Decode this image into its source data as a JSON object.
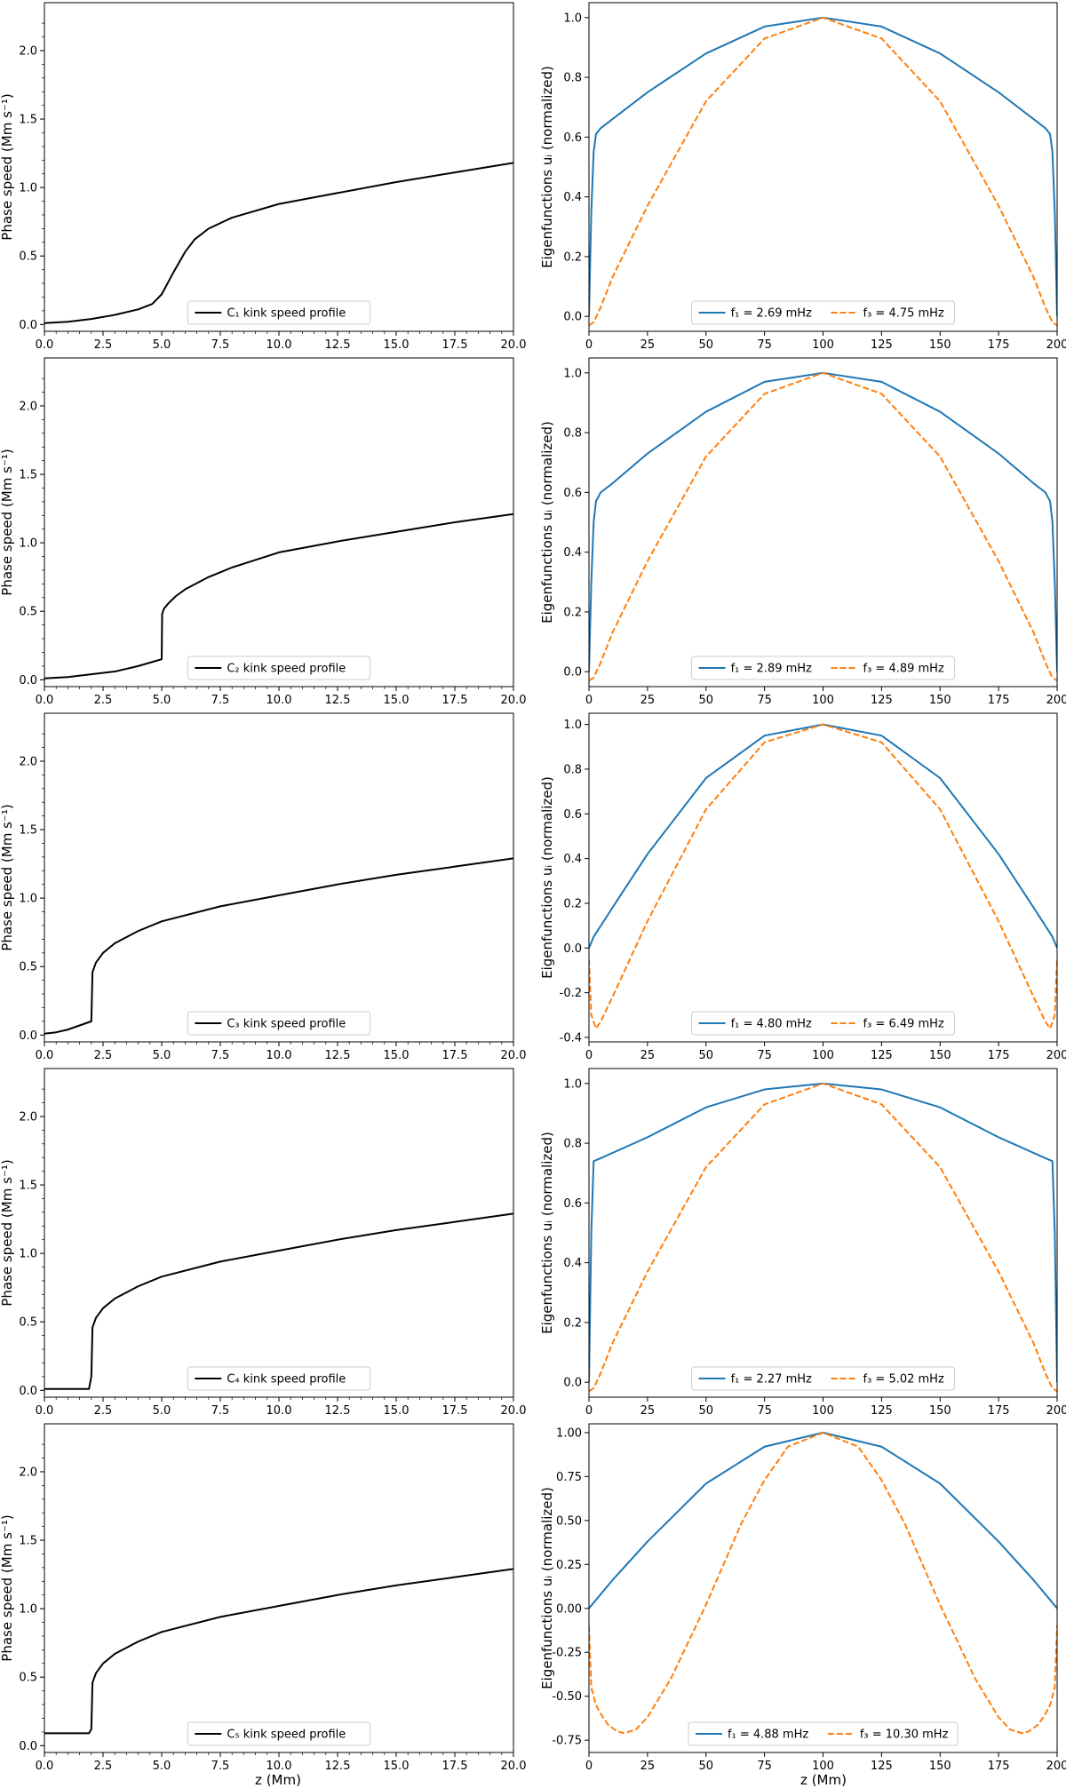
{
  "figure": {
    "xlabel_left": "z (Mm)",
    "xlabel_right": "z (Mm)"
  },
  "colors": {
    "kink": "#000000",
    "f1": "#1f77b4",
    "f3": "#ff7f0e",
    "axes": "#000000"
  },
  "chart_data": [
    {
      "type": "line",
      "panel": "C1 speed",
      "ylabel": "Phase speed (Mm s⁻¹)",
      "xlim": [
        0,
        20
      ],
      "ylim": [
        -0.05,
        2.35
      ],
      "xticks": [
        "0.0",
        "2.5",
        "5.0",
        "7.5",
        "10.0",
        "12.5",
        "15.0",
        "17.5",
        "20.0"
      ],
      "yticks": [
        "0.0",
        "0.5",
        "1.0",
        "1.5",
        "2.0"
      ],
      "legend": "top-center-bottom",
      "series": [
        {
          "name": "C₁ kink speed profile",
          "style": "solid",
          "color": "#000000",
          "x": [
            0,
            1,
            2,
            3,
            4,
            4.6,
            5,
            5.5,
            6,
            6.4,
            7,
            8,
            10,
            12.5,
            15,
            17.5,
            20
          ],
          "y": [
            0.01,
            0.02,
            0.04,
            0.07,
            0.11,
            0.15,
            0.22,
            0.38,
            0.53,
            0.62,
            0.7,
            0.78,
            0.88,
            0.96,
            1.04,
            1.11,
            1.18
          ]
        }
      ]
    },
    {
      "type": "line",
      "panel": "C1 eigenfunctions",
      "ylabel": "Eigenfunctions uᵢ (normalized)",
      "xlim": [
        0,
        200
      ],
      "ylim": [
        -0.05,
        1.05
      ],
      "xticks": [
        "0",
        "25",
        "50",
        "75",
        "100",
        "125",
        "150",
        "175",
        "200"
      ],
      "yticks": [
        "0.0",
        "0.2",
        "0.4",
        "0.6",
        "0.8",
        "1.0"
      ],
      "series": [
        {
          "name": "f₁ = 2.69 mHz",
          "style": "solid",
          "color": "#1f77b4",
          "x": [
            0,
            1,
            2,
            3,
            5,
            10,
            25,
            50,
            75,
            100,
            125,
            150,
            175,
            190,
            195,
            197,
            198,
            199,
            200
          ],
          "y": [
            0,
            0.35,
            0.55,
            0.61,
            0.63,
            0.66,
            0.75,
            0.88,
            0.97,
            1.0,
            0.97,
            0.88,
            0.75,
            0.66,
            0.63,
            0.61,
            0.55,
            0.35,
            0
          ]
        },
        {
          "name": "f₃ = 4.75 mHz",
          "style": "dashed",
          "color": "#ff7f0e",
          "x": [
            0,
            2,
            5,
            10,
            25,
            50,
            75,
            100,
            125,
            150,
            175,
            190,
            195,
            198,
            200
          ],
          "y": [
            -0.03,
            -0.02,
            0.03,
            0.13,
            0.37,
            0.72,
            0.93,
            1.0,
            0.93,
            0.72,
            0.37,
            0.13,
            0.03,
            -0.02,
            -0.03
          ]
        }
      ]
    },
    {
      "type": "line",
      "panel": "C2 speed",
      "ylabel": "Phase speed (Mm s⁻¹)",
      "xlim": [
        0,
        20
      ],
      "ylim": [
        -0.05,
        2.35
      ],
      "xticks": [
        "0.0",
        "2.5",
        "5.0",
        "7.5",
        "10.0",
        "12.5",
        "15.0",
        "17.5",
        "20.0"
      ],
      "yticks": [
        "0.0",
        "0.5",
        "1.0",
        "1.5",
        "2.0"
      ],
      "series": [
        {
          "name": "C₂ kink speed profile",
          "style": "solid",
          "color": "#000000",
          "x": [
            0,
            1,
            2,
            3,
            4,
            4.6,
            5,
            5.02,
            5.1,
            5.3,
            5.6,
            6,
            7,
            8,
            10,
            12.5,
            15,
            17.5,
            20
          ],
          "y": [
            0.01,
            0.02,
            0.04,
            0.06,
            0.1,
            0.13,
            0.15,
            0.48,
            0.52,
            0.56,
            0.61,
            0.66,
            0.75,
            0.82,
            0.93,
            1.01,
            1.08,
            1.15,
            1.21
          ]
        }
      ]
    },
    {
      "type": "line",
      "panel": "C2 eigenfunctions",
      "ylabel": "Eigenfunctions uᵢ (normalized)",
      "xlim": [
        0,
        200
      ],
      "ylim": [
        -0.05,
        1.05
      ],
      "xticks": [
        "0",
        "25",
        "50",
        "75",
        "100",
        "125",
        "150",
        "175",
        "200"
      ],
      "yticks": [
        "0.0",
        "0.2",
        "0.4",
        "0.6",
        "0.8",
        "1.0"
      ],
      "series": [
        {
          "name": "f₁ = 2.89 mHz",
          "style": "solid",
          "color": "#1f77b4",
          "x": [
            0,
            1,
            2,
            3,
            5,
            10,
            25,
            50,
            75,
            100,
            125,
            150,
            175,
            190,
            195,
            197,
            198,
            199,
            200
          ],
          "y": [
            0,
            0.3,
            0.5,
            0.57,
            0.6,
            0.63,
            0.73,
            0.87,
            0.97,
            1.0,
            0.97,
            0.87,
            0.73,
            0.63,
            0.6,
            0.57,
            0.5,
            0.3,
            0
          ]
        },
        {
          "name": "f₃ = 4.89 mHz",
          "style": "dashed",
          "color": "#ff7f0e",
          "x": [
            0,
            2,
            5,
            10,
            25,
            50,
            75,
            100,
            125,
            150,
            175,
            190,
            195,
            198,
            200
          ],
          "y": [
            -0.03,
            -0.02,
            0.03,
            0.13,
            0.37,
            0.72,
            0.93,
            1.0,
            0.93,
            0.72,
            0.37,
            0.13,
            0.03,
            -0.02,
            -0.03
          ]
        }
      ]
    },
    {
      "type": "line",
      "panel": "C3 speed",
      "ylabel": "Phase speed (Mm s⁻¹)",
      "xlim": [
        0,
        20
      ],
      "ylim": [
        -0.05,
        2.35
      ],
      "xticks": [
        "0.0",
        "2.5",
        "5.0",
        "7.5",
        "10.0",
        "12.5",
        "15.0",
        "17.5",
        "20.0"
      ],
      "yticks": [
        "0.0",
        "0.5",
        "1.0",
        "1.5",
        "2.0"
      ],
      "series": [
        {
          "name": "C₃ kink speed profile",
          "style": "solid",
          "color": "#000000",
          "x": [
            0,
            0.5,
            1,
            1.5,
            2,
            2.05,
            2.2,
            2.5,
            3,
            4,
            5,
            7.5,
            10,
            12.5,
            15,
            17.5,
            20
          ],
          "y": [
            0.01,
            0.02,
            0.04,
            0.07,
            0.1,
            0.46,
            0.53,
            0.6,
            0.67,
            0.76,
            0.83,
            0.94,
            1.02,
            1.1,
            1.17,
            1.23,
            1.29
          ]
        }
      ]
    },
    {
      "type": "line",
      "panel": "C3 eigenfunctions",
      "ylabel": "Eigenfunctions uᵢ (normalized)",
      "xlim": [
        0,
        200
      ],
      "ylim": [
        -0.42,
        1.05
      ],
      "xticks": [
        "0",
        "25",
        "50",
        "75",
        "100",
        "125",
        "150",
        "175",
        "200"
      ],
      "yticks": [
        "-0.4",
        "-0.2",
        "0.0",
        "0.2",
        "0.4",
        "0.6",
        "0.8",
        "1.0"
      ],
      "series": [
        {
          "name": "f₁ = 4.80 mHz",
          "style": "solid",
          "color": "#1f77b4",
          "x": [
            0,
            2,
            10,
            25,
            50,
            75,
            100,
            125,
            150,
            175,
            190,
            198,
            200
          ],
          "y": [
            0,
            0.05,
            0.18,
            0.42,
            0.76,
            0.95,
            1.0,
            0.95,
            0.76,
            0.42,
            0.18,
            0.05,
            0
          ]
        },
        {
          "name": "f₃ = 6.49 mHz",
          "style": "dashed",
          "color": "#ff7f0e",
          "x": [
            0,
            1,
            3,
            5,
            10,
            25,
            50,
            75,
            100,
            125,
            150,
            175,
            190,
            195,
            197,
            199,
            200
          ],
          "y": [
            -0.05,
            -0.3,
            -0.36,
            -0.33,
            -0.22,
            0.12,
            0.62,
            0.92,
            1.0,
            0.92,
            0.62,
            0.12,
            -0.22,
            -0.33,
            -0.36,
            -0.3,
            -0.05
          ]
        }
      ]
    },
    {
      "type": "line",
      "panel": "C4 speed",
      "ylabel": "Phase speed (Mm s⁻¹)",
      "xlim": [
        0,
        20
      ],
      "ylim": [
        -0.05,
        2.35
      ],
      "xticks": [
        "0.0",
        "2.5",
        "5.0",
        "7.5",
        "10.0",
        "12.5",
        "15.0",
        "17.5",
        "20.0"
      ],
      "yticks": [
        "0.0",
        "0.5",
        "1.0",
        "1.5",
        "2.0"
      ],
      "series": [
        {
          "name": "C₄ kink speed profile",
          "style": "solid",
          "color": "#000000",
          "x": [
            0,
            1,
            1.9,
            2,
            2.05,
            2.2,
            2.5,
            3,
            4,
            5,
            7.5,
            10,
            12.5,
            15,
            17.5,
            20
          ],
          "y": [
            0.01,
            0.01,
            0.01,
            0.1,
            0.46,
            0.53,
            0.6,
            0.67,
            0.76,
            0.83,
            0.94,
            1.02,
            1.1,
            1.17,
            1.23,
            1.29
          ]
        }
      ]
    },
    {
      "type": "line",
      "panel": "C4 eigenfunctions",
      "ylabel": "Eigenfunctions uᵢ (normalized)",
      "xlim": [
        0,
        200
      ],
      "ylim": [
        -0.05,
        1.05
      ],
      "xticks": [
        "0",
        "25",
        "50",
        "75",
        "100",
        "125",
        "150",
        "175",
        "200"
      ],
      "yticks": [
        "0.0",
        "0.2",
        "0.4",
        "0.6",
        "0.8",
        "1.0"
      ],
      "series": [
        {
          "name": "f₁ = 2.27 mHz",
          "style": "solid",
          "color": "#1f77b4",
          "x": [
            0,
            1,
            2,
            5,
            25,
            50,
            75,
            100,
            125,
            150,
            175,
            195,
            198,
            199,
            200
          ],
          "y": [
            0,
            0.5,
            0.74,
            0.75,
            0.82,
            0.92,
            0.98,
            1.0,
            0.98,
            0.92,
            0.82,
            0.75,
            0.74,
            0.5,
            0
          ]
        },
        {
          "name": "f₃ = 5.02 mHz",
          "style": "dashed",
          "color": "#ff7f0e",
          "x": [
            0,
            2,
            5,
            10,
            25,
            50,
            75,
            100,
            125,
            150,
            175,
            190,
            195,
            198,
            200
          ],
          "y": [
            -0.03,
            -0.02,
            0.03,
            0.13,
            0.37,
            0.72,
            0.93,
            1.0,
            0.93,
            0.72,
            0.37,
            0.13,
            0.03,
            -0.02,
            -0.03
          ]
        }
      ]
    },
    {
      "type": "line",
      "panel": "C5 speed",
      "ylabel": "Phase speed (Mm s⁻¹)",
      "xlim": [
        0,
        20
      ],
      "ylim": [
        -0.05,
        2.35
      ],
      "xticks": [
        "0.0",
        "2.5",
        "5.0",
        "7.5",
        "10.0",
        "12.5",
        "15.0",
        "17.5",
        "20.0"
      ],
      "yticks": [
        "0.0",
        "0.5",
        "1.0",
        "1.5",
        "2.0"
      ],
      "series": [
        {
          "name": "C₅ kink speed profile",
          "style": "solid",
          "color": "#000000",
          "x": [
            0,
            1,
            1.9,
            2,
            2.05,
            2.2,
            2.5,
            3,
            4,
            5,
            7.5,
            10,
            12.5,
            15,
            17.5,
            20
          ],
          "y": [
            0.09,
            0.09,
            0.09,
            0.12,
            0.46,
            0.53,
            0.6,
            0.67,
            0.76,
            0.83,
            0.94,
            1.02,
            1.1,
            1.17,
            1.23,
            1.29
          ]
        }
      ]
    },
    {
      "type": "line",
      "panel": "C5 eigenfunctions",
      "ylabel": "Eigenfunctions uᵢ (normalized)",
      "xlim": [
        0,
        200
      ],
      "ylim": [
        -0.82,
        1.05
      ],
      "xticks": [
        "0",
        "25",
        "50",
        "75",
        "100",
        "125",
        "150",
        "175",
        "200"
      ],
      "yticks": [
        "-0.75",
        "-0.50",
        "-0.25",
        "0.00",
        "0.25",
        "0.50",
        "0.75",
        "1.00"
      ],
      "series": [
        {
          "name": "f₁ = 4.88 mHz",
          "style": "solid",
          "color": "#1f77b4",
          "x": [
            0,
            10,
            25,
            50,
            75,
            100,
            125,
            150,
            175,
            190,
            200
          ],
          "y": [
            0,
            0.16,
            0.38,
            0.71,
            0.92,
            1.0,
            0.92,
            0.71,
            0.38,
            0.16,
            0
          ]
        },
        {
          "name": "f₃ = 10.30 mHz",
          "style": "dashed",
          "color": "#ff7f0e",
          "x": [
            0,
            1,
            3,
            5,
            8,
            12,
            15,
            20,
            25,
            35,
            50,
            65,
            75,
            85,
            100,
            115,
            125,
            135,
            150,
            165,
            175,
            180,
            185,
            188,
            192,
            195,
            197,
            199,
            200
          ],
          "y": [
            -0.1,
            -0.45,
            -0.55,
            -0.6,
            -0.66,
            -0.7,
            -0.71,
            -0.69,
            -0.62,
            -0.4,
            0.02,
            0.48,
            0.73,
            0.92,
            1.0,
            0.92,
            0.73,
            0.48,
            0.02,
            -0.4,
            -0.62,
            -0.69,
            -0.71,
            -0.7,
            -0.66,
            -0.6,
            -0.55,
            -0.45,
            -0.1
          ]
        }
      ]
    }
  ]
}
